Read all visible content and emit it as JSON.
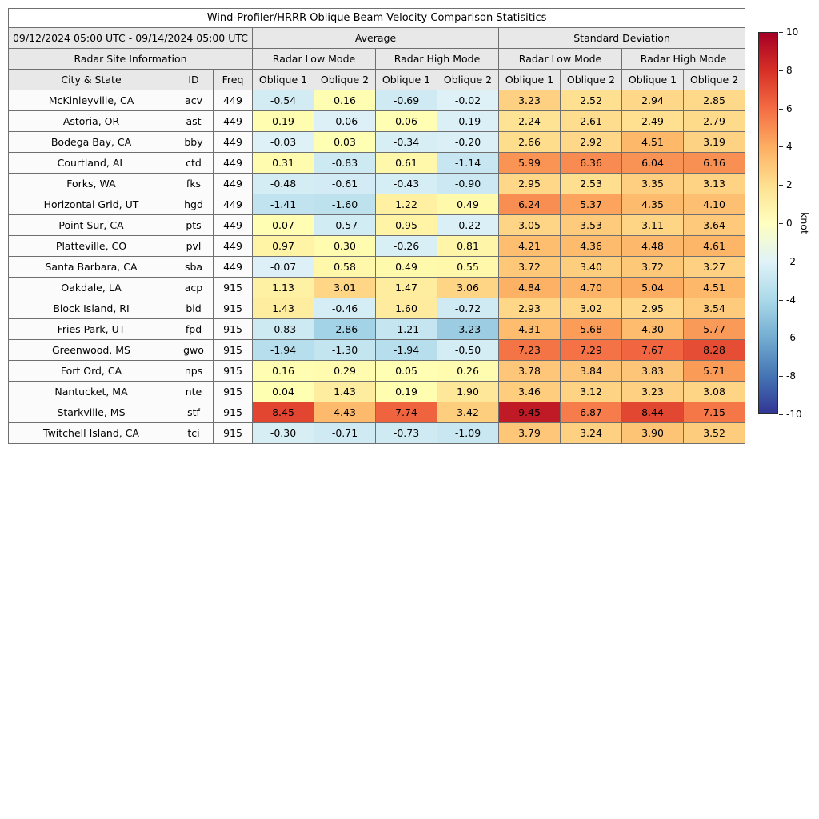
{
  "chart_data": {
    "type": "heatmap",
    "title": "Wind-Profiler/HRRR Oblique Beam Velocity Comparison Statisitics",
    "header": {
      "date_range": "09/12/2024 05:00 UTC - 09/14/2024 05:00 UTC",
      "group_average": "Average",
      "group_stddev": "Standard Deviation",
      "site_info": "Radar Site Information",
      "low_mode": "Radar Low Mode",
      "high_mode": "Radar High Mode",
      "col_city": "City & State",
      "col_id": "ID",
      "col_freq": "Freq",
      "col_ob1": "Oblique 1",
      "col_ob2": "Oblique 2"
    },
    "value_columns": [
      "Average Radar Low Mode Oblique 1",
      "Average Radar Low Mode Oblique 2",
      "Average Radar High Mode Oblique 1",
      "Average Radar High Mode Oblique 2",
      "Standard Deviation Radar Low Mode Oblique 1",
      "Standard Deviation Radar Low Mode Oblique 2",
      "Standard Deviation Radar High Mode Oblique 1",
      "Standard Deviation Radar High Mode Oblique 2"
    ],
    "rows": [
      {
        "city": "McKinleyville, CA",
        "id": "acv",
        "freq": "449",
        "values": [
          -0.54,
          0.16,
          -0.69,
          -0.02,
          3.23,
          2.52,
          2.94,
          2.85
        ]
      },
      {
        "city": "Astoria, OR",
        "id": "ast",
        "freq": "449",
        "values": [
          0.19,
          -0.06,
          0.06,
          -0.19,
          2.24,
          2.61,
          2.49,
          2.79
        ]
      },
      {
        "city": "Bodega Bay, CA",
        "id": "bby",
        "freq": "449",
        "values": [
          -0.03,
          0.03,
          -0.34,
          -0.2,
          2.66,
          2.92,
          4.51,
          3.19
        ]
      },
      {
        "city": "Courtland, AL",
        "id": "ctd",
        "freq": "449",
        "values": [
          0.31,
          -0.83,
          0.61,
          -1.14,
          5.99,
          6.36,
          6.04,
          6.16
        ]
      },
      {
        "city": "Forks, WA",
        "id": "fks",
        "freq": "449",
        "values": [
          -0.48,
          -0.61,
          -0.43,
          -0.9,
          2.95,
          2.53,
          3.35,
          3.13
        ]
      },
      {
        "city": "Horizontal Grid, UT",
        "id": "hgd",
        "freq": "449",
        "values": [
          -1.41,
          -1.6,
          1.22,
          0.49,
          6.24,
          5.37,
          4.35,
          4.1
        ]
      },
      {
        "city": "Point Sur, CA",
        "id": "pts",
        "freq": "449",
        "values": [
          0.07,
          -0.57,
          0.95,
          -0.22,
          3.05,
          3.53,
          3.11,
          3.64
        ]
      },
      {
        "city": "Platteville, CO",
        "id": "pvl",
        "freq": "449",
        "values": [
          0.97,
          0.3,
          -0.26,
          0.81,
          4.21,
          4.36,
          4.48,
          4.61
        ]
      },
      {
        "city": "Santa Barbara, CA",
        "id": "sba",
        "freq": "449",
        "values": [
          -0.07,
          0.58,
          0.49,
          0.55,
          3.72,
          3.4,
          3.72,
          3.27
        ]
      },
      {
        "city": "Oakdale, LA",
        "id": "acp",
        "freq": "915",
        "values": [
          1.13,
          3.01,
          1.47,
          3.06,
          4.84,
          4.7,
          5.04,
          4.51
        ]
      },
      {
        "city": "Block Island, RI",
        "id": "bid",
        "freq": "915",
        "values": [
          1.43,
          -0.46,
          1.6,
          -0.72,
          2.93,
          3.02,
          2.95,
          3.54
        ]
      },
      {
        "city": "Fries Park, UT",
        "id": "fpd",
        "freq": "915",
        "values": [
          -0.83,
          -2.86,
          -1.21,
          -3.23,
          4.31,
          5.68,
          4.3,
          5.77
        ]
      },
      {
        "city": "Greenwood, MS",
        "id": "gwo",
        "freq": "915",
        "values": [
          -1.94,
          -1.3,
          -1.94,
          -0.5,
          7.23,
          7.29,
          7.67,
          8.28
        ]
      },
      {
        "city": "Fort Ord, CA",
        "id": "nps",
        "freq": "915",
        "values": [
          0.16,
          0.29,
          0.05,
          0.26,
          3.78,
          3.84,
          3.83,
          5.71
        ]
      },
      {
        "city": "Nantucket, MA",
        "id": "nte",
        "freq": "915",
        "values": [
          0.04,
          1.43,
          0.19,
          1.9,
          3.46,
          3.12,
          3.23,
          3.08
        ]
      },
      {
        "city": "Starkville, MS",
        "id": "stf",
        "freq": "915",
        "values": [
          8.45,
          4.43,
          7.74,
          3.42,
          9.45,
          6.87,
          8.44,
          7.15
        ]
      },
      {
        "city": "Twitchell Island, CA",
        "id": "tci",
        "freq": "915",
        "values": [
          -0.3,
          -0.71,
          -0.73,
          -1.09,
          3.79,
          3.24,
          3.9,
          3.52
        ]
      }
    ],
    "colorbar": {
      "label": "knot",
      "min": -10,
      "max": 10,
      "ticks": [
        10,
        8,
        6,
        4,
        2,
        0,
        -2,
        -4,
        -6,
        -8,
        -10
      ],
      "gradient_top_to_bottom": [
        "#a50026",
        "#d73027",
        "#f46d43",
        "#fdae61",
        "#fee090",
        "#ffffbf",
        "#e0f3f8",
        "#abd9e9",
        "#74add1",
        "#4575b4",
        "#313695"
      ],
      "positive_stops": [
        [
          0,
          "#ffffb3"
        ],
        [
          2.5,
          "#fee090"
        ],
        [
          5,
          "#fdae61"
        ],
        [
          7.5,
          "#f46d43"
        ],
        [
          9,
          "#d73027"
        ],
        [
          10,
          "#a50026"
        ]
      ],
      "negative_stops": [
        [
          0,
          "#def1f7"
        ],
        [
          2.5,
          "#abd9e9"
        ],
        [
          5,
          "#74add1"
        ],
        [
          7.5,
          "#4575b4"
        ],
        [
          10,
          "#313695"
        ]
      ]
    }
  }
}
